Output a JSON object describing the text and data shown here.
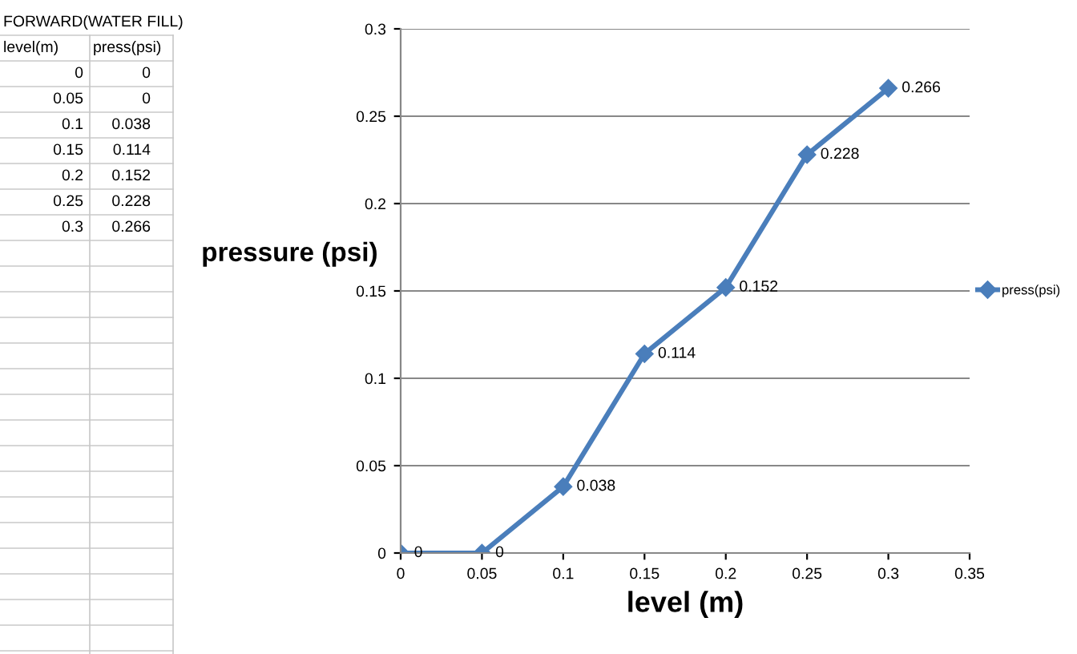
{
  "chart_data": {
    "type": "line",
    "xlabel": "level (m)",
    "ylabel": "pressure (psi)",
    "annotations": [
      "FORWARD(WATER FILL)",
      "level(m)",
      "press(psi)",
      "0",
      "0",
      "0.05",
      "0",
      "0.1",
      "0.038",
      "0.15",
      "0.114",
      "0.2",
      "0.152",
      "0.25",
      "0.228",
      "0.3",
      "0.266"
    ],
    "x": [
      0,
      0.05,
      0.1,
      0.15,
      0.2,
      0.25,
      0.3
    ],
    "series": [
      {
        "name": "press(psi)",
        "color": "#4a7ebb",
        "values": [
          0,
          0,
          0.038,
          0.114,
          0.152,
          0.228,
          0.266
        ]
      }
    ],
    "xlim": [
      0,
      0.35
    ],
    "xticks": [
      0,
      0.05,
      0.1,
      0.15,
      0.2,
      0.25,
      0.3,
      0.35
    ],
    "ylim": [
      0,
      0.3
    ],
    "yticks": [
      0,
      0.05,
      0.1,
      0.15,
      0.2,
      0.25,
      0.3
    ],
    "grid": "y",
    "legend": "right",
    "marker": "diamond",
    "line_style": "solid",
    "data_labels": true
  }
}
